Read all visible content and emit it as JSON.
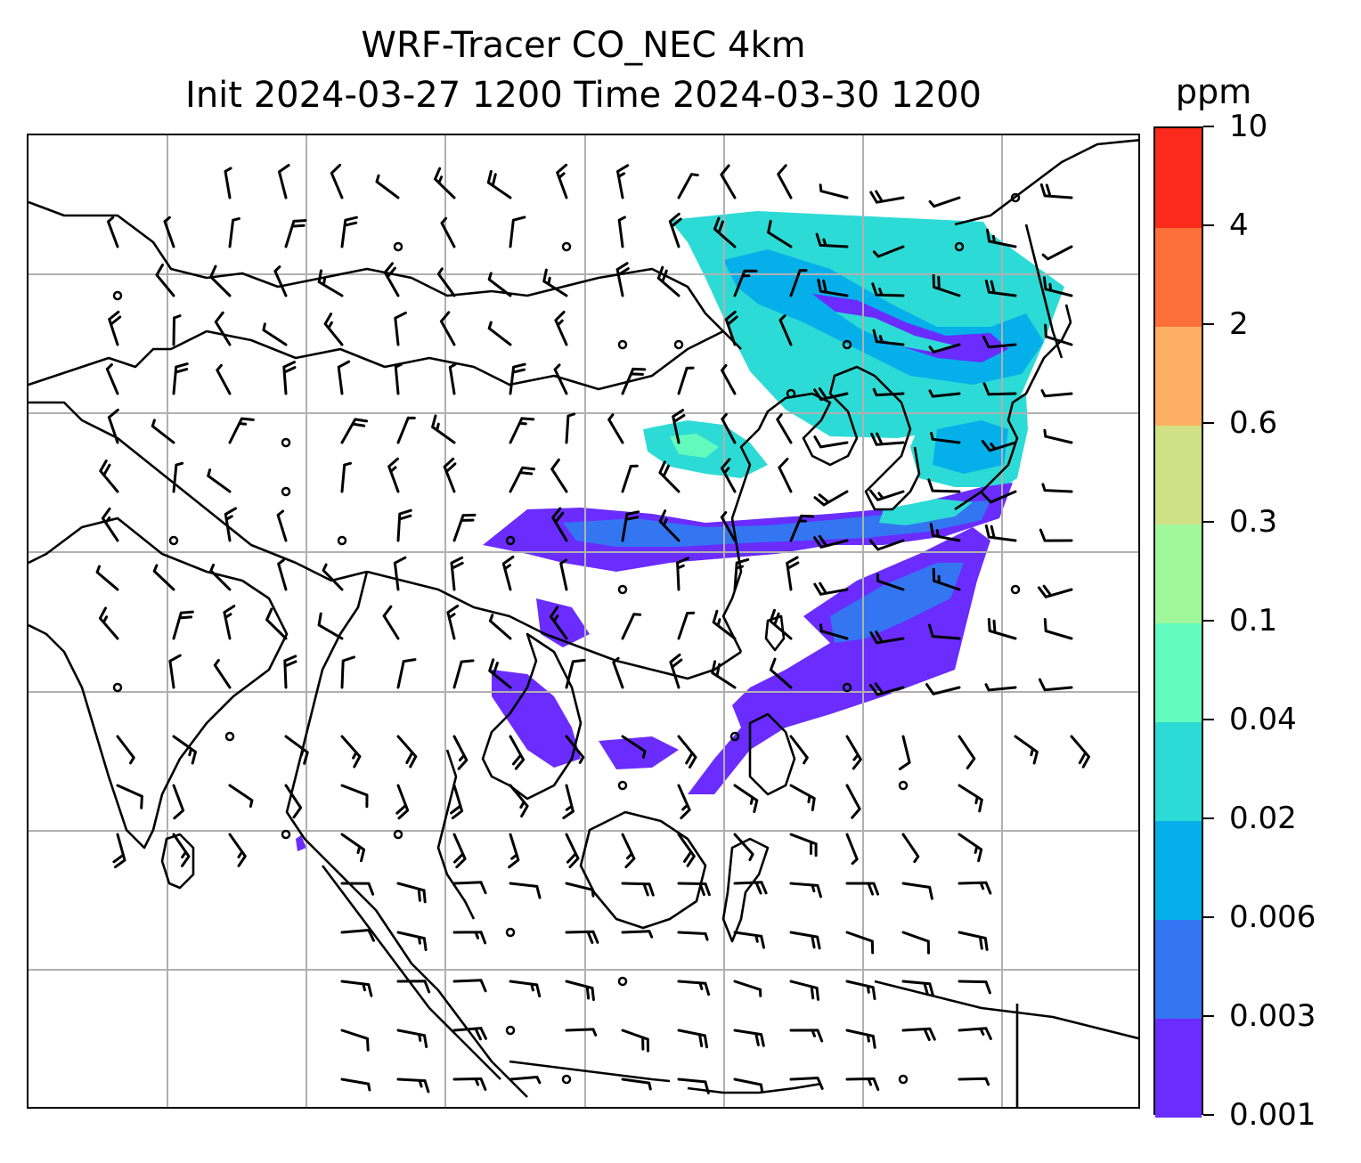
{
  "title": {
    "line1": "WRF-Tracer CO_NEC 4km",
    "line2": "Init 2024-03-27 1200 Time 2024-03-30 1200"
  },
  "colorbar": {
    "unit": "ppm",
    "levels": [
      "0.001",
      "0.003",
      "0.006",
      "0.02",
      "0.04",
      "0.1",
      "0.3",
      "0.6",
      "2",
      "4",
      "10"
    ],
    "colors": [
      "#6a2cff",
      "#3476f2",
      "#05b0ea",
      "#2ddbd6",
      "#62fbbe",
      "#9ff79a",
      "#d0e084",
      "#fdb063",
      "#fd7039",
      "#fd2b1b"
    ]
  },
  "map": {
    "coastline_color": "#000000",
    "grid_color": "#b0b0b0",
    "plume_levels": [
      "0.001",
      "0.003",
      "0.006",
      "0.02",
      "0.04",
      "0.1"
    ]
  }
}
